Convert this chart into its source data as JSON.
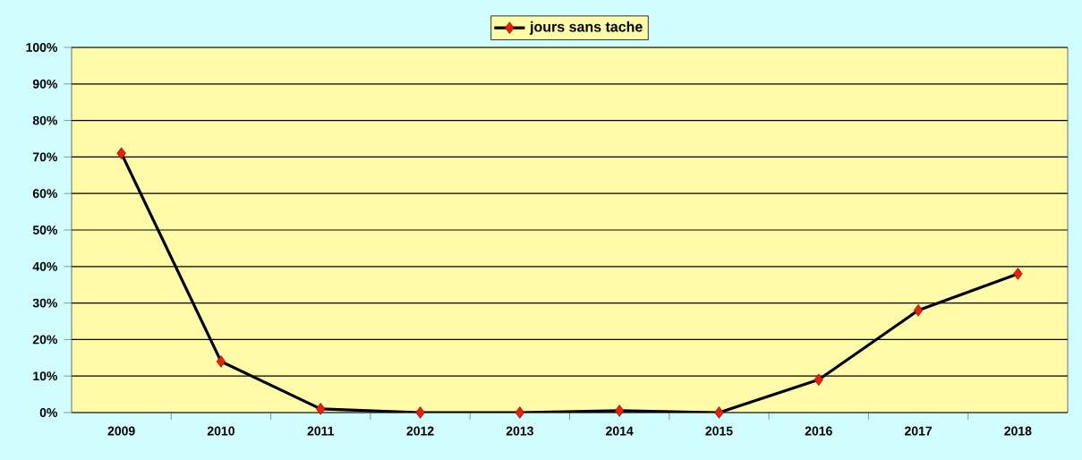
{
  "chart_data": {
    "type": "line",
    "categories": [
      "2009",
      "2010",
      "2011",
      "2012",
      "2013",
      "2014",
      "2015",
      "2016",
      "2017",
      "2018"
    ],
    "series": [
      {
        "name": "jours sans tache",
        "color": "#000000",
        "values": [
          71,
          14,
          1,
          0,
          0,
          0.5,
          0,
          9,
          28,
          38
        ]
      }
    ],
    "ylim": [
      0,
      100
    ],
    "yticks": [
      {
        "value": 0,
        "label": "0%"
      },
      {
        "value": 10,
        "label": "10%"
      },
      {
        "value": 20,
        "label": "20%"
      },
      {
        "value": 30,
        "label": "30%"
      },
      {
        "value": 40,
        "label": "40%"
      },
      {
        "value": 50,
        "label": "50%"
      },
      {
        "value": 60,
        "label": "60%"
      },
      {
        "value": 70,
        "label": "70%"
      },
      {
        "value": 80,
        "label": "80%"
      },
      {
        "value": 90,
        "label": "90%"
      },
      {
        "value": 100,
        "label": "100%"
      }
    ],
    "grid": "y",
    "legend": "top",
    "marker": "diamond",
    "line_style": "solid"
  }
}
